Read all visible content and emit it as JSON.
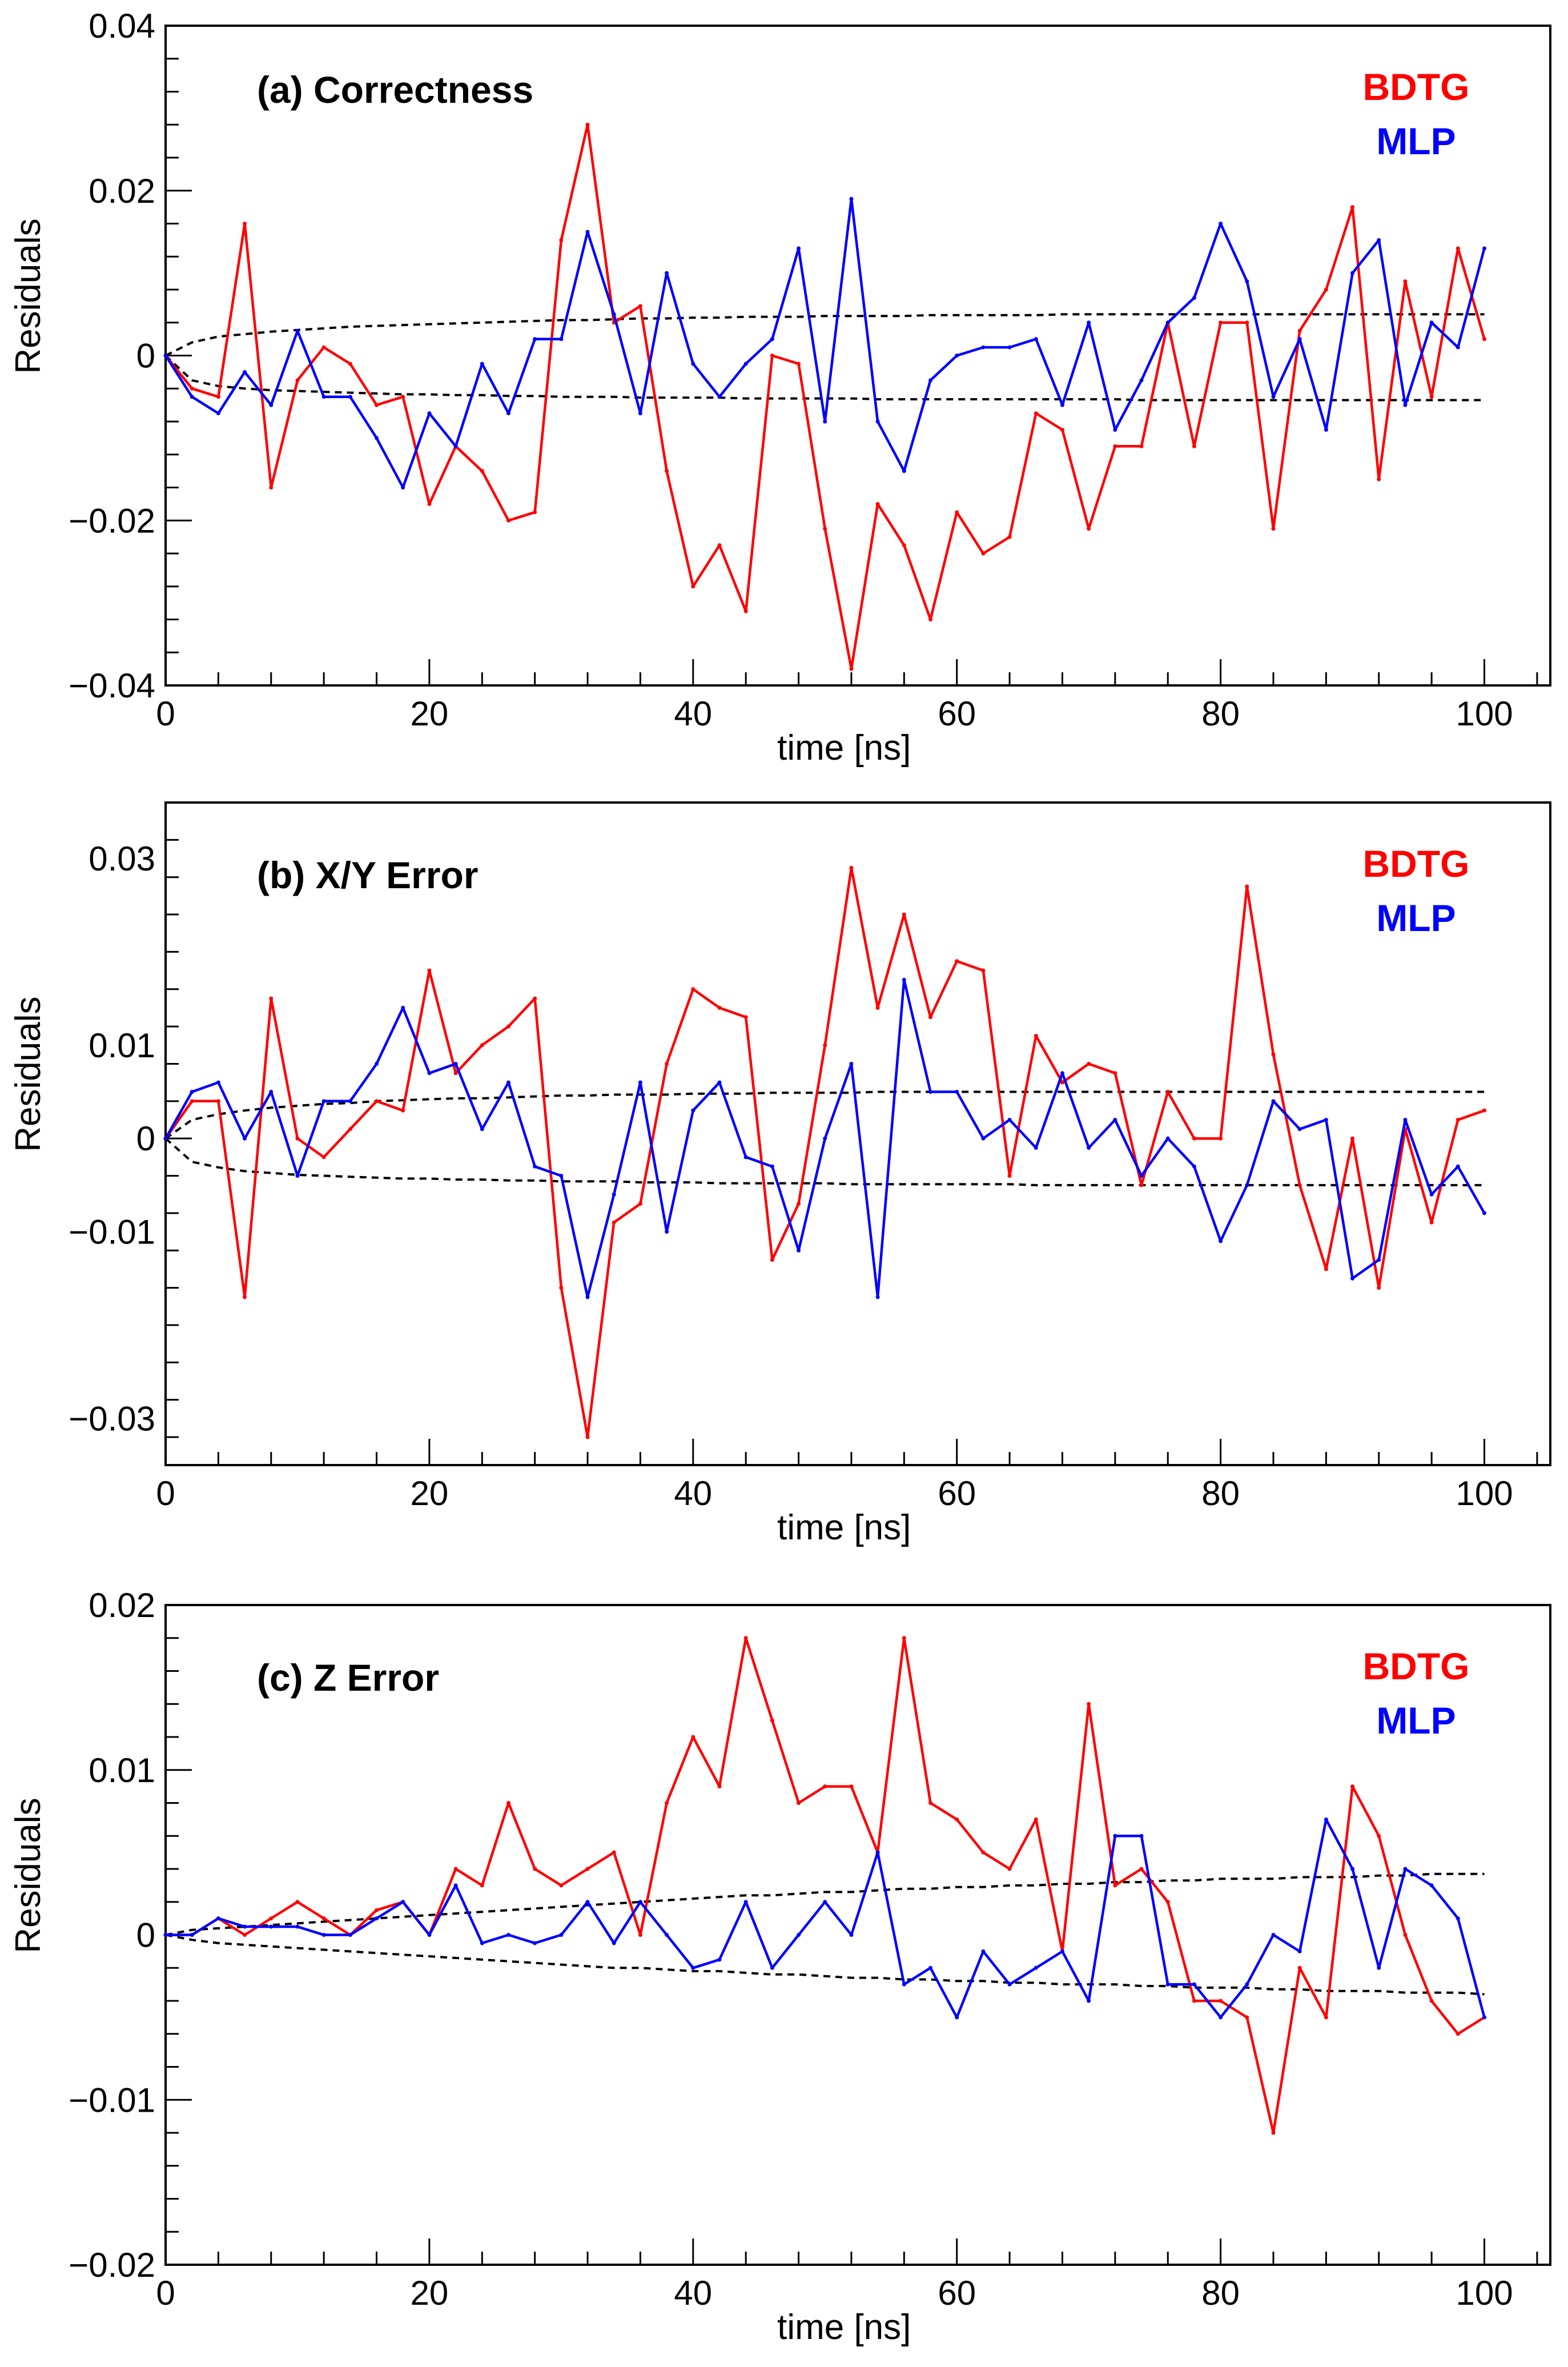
{
  "colors": {
    "bdtg": "#ff0000",
    "mlp": "#0000ff",
    "bound": "#000000"
  },
  "chart_data": [
    {
      "type": "line",
      "title": "(a) Correctness",
      "xlabel": "time [ns]",
      "ylabel": "Residuals",
      "xlim": [
        0,
        105
      ],
      "ylim": [
        -0.04,
        0.04
      ],
      "xticks": [
        0,
        20,
        40,
        60,
        80,
        100
      ],
      "xtick_labels": [
        "0",
        "20",
        "40",
        "60",
        "80",
        "100"
      ],
      "yticks": [
        -0.04,
        -0.02,
        0,
        0.02,
        0.04
      ],
      "ytick_labels": [
        "−0.04",
        "−0.02",
        "0",
        "0.02",
        "0.04"
      ],
      "legend": [
        "BDTG",
        "MLP"
      ],
      "x": [
        0,
        2,
        4,
        6,
        8,
        10,
        12,
        14,
        16,
        18,
        20,
        22,
        24,
        26,
        28,
        30,
        32,
        34,
        36,
        38,
        40,
        42,
        44,
        46,
        48,
        50,
        52,
        54,
        56,
        58,
        60,
        62,
        64,
        66,
        68,
        70,
        72,
        74,
        76,
        78,
        80,
        82,
        84,
        86,
        88,
        90,
        92,
        94,
        96,
        98,
        100
      ],
      "series": [
        {
          "name": "BDTG",
          "values": [
            0,
            -0.004,
            -0.005,
            0.016,
            -0.016,
            -0.003,
            0.001,
            -0.001,
            -0.006,
            -0.005,
            -0.018,
            -0.011,
            -0.014,
            -0.02,
            -0.019,
            0.014,
            0.028,
            0.004,
            0.006,
            -0.014,
            -0.028,
            -0.023,
            -0.031,
            0.0,
            -0.001,
            -0.021,
            -0.038,
            -0.018,
            -0.023,
            -0.032,
            -0.019,
            -0.024,
            -0.022,
            -0.007,
            -0.009,
            -0.021,
            -0.011,
            -0.011,
            0.004,
            -0.011,
            0.004,
            0.004,
            -0.021,
            0.003,
            0.008,
            0.018,
            -0.015,
            0.009,
            -0.005,
            0.013,
            0.002
          ]
        },
        {
          "name": "MLP",
          "values": [
            0,
            -0.005,
            -0.007,
            -0.002,
            -0.006,
            0.003,
            -0.005,
            -0.005,
            -0.01,
            -0.016,
            -0.007,
            -0.011,
            -0.001,
            -0.007,
            0.002,
            0.002,
            0.015,
            0.005,
            -0.007,
            0.01,
            -0.001,
            -0.005,
            -0.001,
            0.002,
            0.013,
            -0.008,
            0.019,
            -0.008,
            -0.014,
            -0.003,
            0.0,
            0.001,
            0.001,
            0.002,
            -0.006,
            0.004,
            -0.009,
            -0.003,
            0.004,
            0.007,
            0.016,
            0.009,
            -0.005,
            0.002,
            -0.009,
            0.01,
            0.014,
            -0.006,
            0.004,
            0.001,
            0.013
          ]
        },
        {
          "name": "upper bound",
          "values": [
            0,
            0.0016,
            0.0023,
            0.0026,
            0.0029,
            0.0031,
            0.0033,
            0.0035,
            0.0036,
            0.0037,
            0.0038,
            0.0039,
            0.004,
            0.0041,
            0.0042,
            0.0043,
            0.0043,
            0.0044,
            0.0045,
            0.0045,
            0.0046,
            0.0046,
            0.0047,
            0.0047,
            0.0047,
            0.0048,
            0.0048,
            0.0048,
            0.0048,
            0.0049,
            0.0049,
            0.0049,
            0.0049,
            0.0049,
            0.005,
            0.005,
            0.005,
            0.005,
            0.005,
            0.005,
            0.005,
            0.005,
            0.005,
            0.005,
            0.005,
            0.005,
            0.005,
            0.005,
            0.005,
            0.005,
            0.005
          ]
        },
        {
          "name": "lower bound",
          "values": [
            0,
            -0.003,
            -0.0037,
            -0.004,
            -0.0042,
            -0.0043,
            -0.0044,
            -0.0045,
            -0.0046,
            -0.0047,
            -0.0047,
            -0.0048,
            -0.0048,
            -0.0049,
            -0.0049,
            -0.005,
            -0.005,
            -0.005,
            -0.0051,
            -0.0051,
            -0.0051,
            -0.0051,
            -0.0052,
            -0.0052,
            -0.0052,
            -0.0052,
            -0.0052,
            -0.0053,
            -0.0053,
            -0.0053,
            -0.0053,
            -0.0053,
            -0.0053,
            -0.0053,
            -0.0053,
            -0.0053,
            -0.0053,
            -0.0054,
            -0.0054,
            -0.0054,
            -0.0054,
            -0.0054,
            -0.0054,
            -0.0054,
            -0.0054,
            -0.0054,
            -0.0054,
            -0.0054,
            -0.0054,
            -0.0054,
            -0.0054
          ]
        }
      ]
    },
    {
      "type": "line",
      "title": "(b) X/Y Error",
      "xlabel": "time [ns]",
      "ylabel": "Residuals",
      "xlim": [
        0,
        105
      ],
      "ylim": [
        -0.035,
        0.036
      ],
      "xticks": [
        0,
        20,
        40,
        60,
        80,
        100
      ],
      "xtick_labels": [
        "0",
        "20",
        "40",
        "60",
        "80",
        "100"
      ],
      "yticks": [
        -0.03,
        -0.01,
        0,
        0.01,
        0.03
      ],
      "ytick_labels": [
        "−0.03",
        "−0.01",
        "0",
        "0.01",
        "0.03"
      ],
      "legend": [
        "BDTG",
        "MLP"
      ],
      "x": [
        0,
        2,
        4,
        6,
        8,
        10,
        12,
        14,
        16,
        18,
        20,
        22,
        24,
        26,
        28,
        30,
        32,
        34,
        36,
        38,
        40,
        42,
        44,
        46,
        48,
        50,
        52,
        54,
        56,
        58,
        60,
        62,
        64,
        66,
        68,
        70,
        72,
        74,
        76,
        78,
        80,
        82,
        84,
        86,
        88,
        90,
        92,
        94,
        96,
        98,
        100
      ],
      "series": [
        {
          "name": "BDTG",
          "values": [
            0,
            0.004,
            0.004,
            -0.017,
            0.015,
            0.0,
            -0.002,
            0.001,
            0.004,
            0.003,
            0.018,
            0.007,
            0.01,
            0.012,
            0.015,
            -0.016,
            -0.032,
            -0.009,
            -0.007,
            0.008,
            0.016,
            0.014,
            0.013,
            -0.013,
            -0.007,
            0.01,
            0.029,
            0.014,
            0.024,
            0.013,
            0.019,
            0.018,
            -0.004,
            0.011,
            0.006,
            0.008,
            0.007,
            -0.005,
            0.005,
            0.0,
            0.0,
            0.027,
            0.009,
            -0.005,
            -0.014,
            0.0,
            -0.016,
            0.001,
            -0.009,
            0.002,
            0.003
          ]
        },
        {
          "name": "MLP",
          "values": [
            0,
            0.005,
            0.006,
            0.0,
            0.005,
            -0.004,
            0.004,
            0.004,
            0.008,
            0.014,
            0.007,
            0.008,
            0.001,
            0.006,
            -0.003,
            -0.004,
            -0.017,
            -0.006,
            0.006,
            -0.01,
            0.003,
            0.006,
            -0.002,
            -0.003,
            -0.012,
            0.0,
            0.008,
            -0.017,
            0.017,
            0.005,
            0.005,
            0.0,
            0.002,
            -0.001,
            0.007,
            -0.001,
            0.002,
            -0.004,
            0.0,
            -0.003,
            -0.011,
            -0.005,
            0.004,
            0.001,
            0.002,
            -0.015,
            -0.013,
            0.002,
            -0.006,
            -0.003,
            -0.008
          ]
        },
        {
          "name": "upper bound",
          "values": [
            0,
            0.002,
            0.0026,
            0.003,
            0.0033,
            0.0035,
            0.0037,
            0.0038,
            0.004,
            0.0041,
            0.0042,
            0.0043,
            0.0043,
            0.0044,
            0.0045,
            0.0046,
            0.0046,
            0.0047,
            0.0047,
            0.0047,
            0.0048,
            0.0048,
            0.0048,
            0.0049,
            0.0049,
            0.0049,
            0.0049,
            0.005,
            0.005,
            0.005,
            0.005,
            0.005,
            0.005,
            0.005,
            0.005,
            0.005,
            0.005,
            0.005,
            0.005,
            0.005,
            0.005,
            0.005,
            0.005,
            0.005,
            0.005,
            0.005,
            0.005,
            0.005,
            0.005,
            0.005,
            0.005
          ]
        },
        {
          "name": "lower bound",
          "values": [
            0,
            -0.0025,
            -0.0031,
            -0.0035,
            -0.0037,
            -0.0039,
            -0.004,
            -0.0041,
            -0.0042,
            -0.0043,
            -0.0043,
            -0.0044,
            -0.0044,
            -0.0045,
            -0.0045,
            -0.0046,
            -0.0046,
            -0.0046,
            -0.0047,
            -0.0047,
            -0.0047,
            -0.0048,
            -0.0048,
            -0.0048,
            -0.0048,
            -0.0048,
            -0.0049,
            -0.0049,
            -0.0049,
            -0.0049,
            -0.0049,
            -0.0049,
            -0.0049,
            -0.005,
            -0.005,
            -0.005,
            -0.005,
            -0.005,
            -0.005,
            -0.005,
            -0.005,
            -0.005,
            -0.005,
            -0.005,
            -0.005,
            -0.005,
            -0.005,
            -0.005,
            -0.005,
            -0.005,
            -0.005
          ]
        }
      ]
    },
    {
      "type": "line",
      "title": "(c) Z Error",
      "xlabel": "time [ns]",
      "ylabel": "Residuals",
      "xlim": [
        0,
        105
      ],
      "ylim": [
        -0.02,
        0.02
      ],
      "xticks": [
        0,
        20,
        40,
        60,
        80,
        100
      ],
      "xtick_labels": [
        "0",
        "20",
        "40",
        "60",
        "80",
        "100"
      ],
      "yticks": [
        -0.02,
        -0.01,
        0,
        0.01,
        0.02
      ],
      "ytick_labels": [
        "−0.02",
        "−0.01",
        "0",
        "0.01",
        "0.02"
      ],
      "legend": [
        "BDTG",
        "MLP"
      ],
      "x": [
        0,
        2,
        4,
        6,
        8,
        10,
        12,
        14,
        16,
        18,
        20,
        22,
        24,
        26,
        28,
        30,
        32,
        34,
        36,
        38,
        40,
        42,
        44,
        46,
        48,
        50,
        52,
        54,
        56,
        58,
        60,
        62,
        64,
        66,
        68,
        70,
        72,
        74,
        76,
        78,
        80,
        82,
        84,
        86,
        88,
        90,
        92,
        94,
        96,
        98,
        100
      ],
      "series": [
        {
          "name": "BDTG",
          "values": [
            0,
            0.0,
            0.001,
            0.0,
            0.001,
            0.002,
            0.001,
            0.0,
            0.0015,
            0.002,
            0.0,
            0.004,
            0.003,
            0.008,
            0.004,
            0.003,
            0.004,
            0.005,
            0.0,
            0.008,
            0.012,
            0.009,
            0.018,
            0.013,
            0.008,
            0.009,
            0.009,
            0.005,
            0.018,
            0.008,
            0.007,
            0.005,
            0.004,
            0.007,
            -0.001,
            0.014,
            0.003,
            0.004,
            0.002,
            -0.004,
            -0.004,
            -0.005,
            -0.012,
            -0.002,
            -0.005,
            0.009,
            0.006,
            0.0,
            -0.004,
            -0.006,
            -0.005
          ]
        },
        {
          "name": "MLP",
          "values": [
            0,
            0.0,
            0.001,
            0.0005,
            0.0005,
            0.0005,
            0.0,
            0.0,
            0.001,
            0.002,
            0.0,
            0.003,
            -0.0005,
            0.0,
            -0.0005,
            0.0,
            0.002,
            -0.0005,
            0.002,
            0.0,
            -0.002,
            -0.0015,
            0.002,
            -0.002,
            0.0,
            0.002,
            0.0,
            0.005,
            -0.003,
            -0.002,
            -0.005,
            -0.001,
            -0.003,
            -0.002,
            -0.001,
            -0.004,
            0.006,
            0.006,
            -0.003,
            -0.003,
            -0.005,
            -0.003,
            0.0,
            -0.001,
            0.007,
            0.004,
            -0.002,
            0.004,
            0.003,
            0.001,
            -0.005
          ]
        },
        {
          "name": "upper bound",
          "values": [
            0,
            0.0003,
            0.0004,
            0.0005,
            0.0006,
            0.0007,
            0.0008,
            0.0009,
            0.001,
            0.0011,
            0.0012,
            0.0013,
            0.0014,
            0.0015,
            0.0016,
            0.0017,
            0.0018,
            0.0019,
            0.002,
            0.0021,
            0.0022,
            0.0023,
            0.0024,
            0.0024,
            0.0025,
            0.0026,
            0.0026,
            0.0027,
            0.0028,
            0.0028,
            0.0029,
            0.0029,
            0.003,
            0.003,
            0.0031,
            0.0031,
            0.0032,
            0.0032,
            0.0033,
            0.0033,
            0.0034,
            0.0034,
            0.0034,
            0.0035,
            0.0035,
            0.0035,
            0.0036,
            0.0036,
            0.0037,
            0.0037,
            0.0037
          ]
        },
        {
          "name": "lower bound",
          "values": [
            0,
            -0.0003,
            -0.0005,
            -0.0006,
            -0.0007,
            -0.0008,
            -0.0009,
            -0.001,
            -0.0011,
            -0.0012,
            -0.0013,
            -0.0014,
            -0.0015,
            -0.0016,
            -0.0017,
            -0.0018,
            -0.0019,
            -0.002,
            -0.002,
            -0.0021,
            -0.0022,
            -0.0022,
            -0.0023,
            -0.0024,
            -0.0024,
            -0.0025,
            -0.0026,
            -0.0026,
            -0.0027,
            -0.0027,
            -0.0028,
            -0.0028,
            -0.0029,
            -0.0029,
            -0.003,
            -0.003,
            -0.003,
            -0.0031,
            -0.0031,
            -0.0032,
            -0.0032,
            -0.0032,
            -0.0033,
            -0.0033,
            -0.0034,
            -0.0034,
            -0.0034,
            -0.0035,
            -0.0035,
            -0.0035,
            -0.0036
          ]
        }
      ]
    }
  ]
}
